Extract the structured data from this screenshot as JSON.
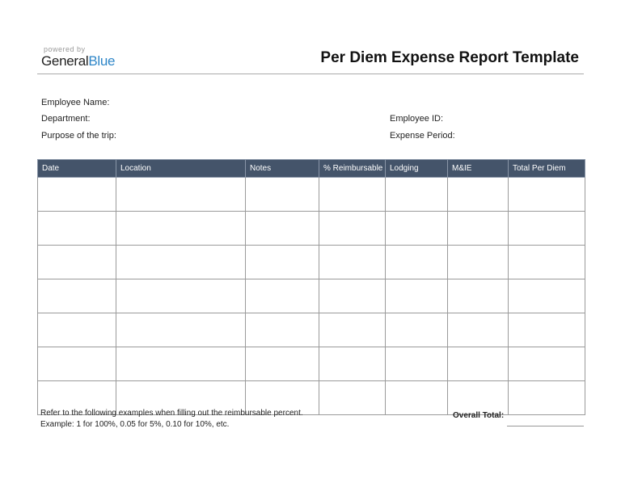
{
  "branding": {
    "powered_by": "powered by",
    "logo_general": "General",
    "logo_blue": "Blue",
    "accent": "#2e86c8"
  },
  "title": "Per Diem Expense Report Template",
  "fields": {
    "employee_name": "Employee Name:",
    "department": "Department:",
    "purpose": "Purpose of the trip:",
    "employee_id": "Employee ID:",
    "expense_period": "Expense Period:"
  },
  "table": {
    "header_color": "#44546a",
    "columns": [
      "Date",
      "Location",
      "Notes",
      "% Reimbursable",
      "Lodging",
      "M&IE",
      "Total Per Diem"
    ],
    "row_count": 7
  },
  "footer": {
    "note1": "Refer to the following examples when filling out the reimbursable percent.",
    "note2": "Example: 1 for 100%, 0.05 for 5%, 0.10 for 10%, etc.",
    "overall_total": "Overall Total:"
  }
}
